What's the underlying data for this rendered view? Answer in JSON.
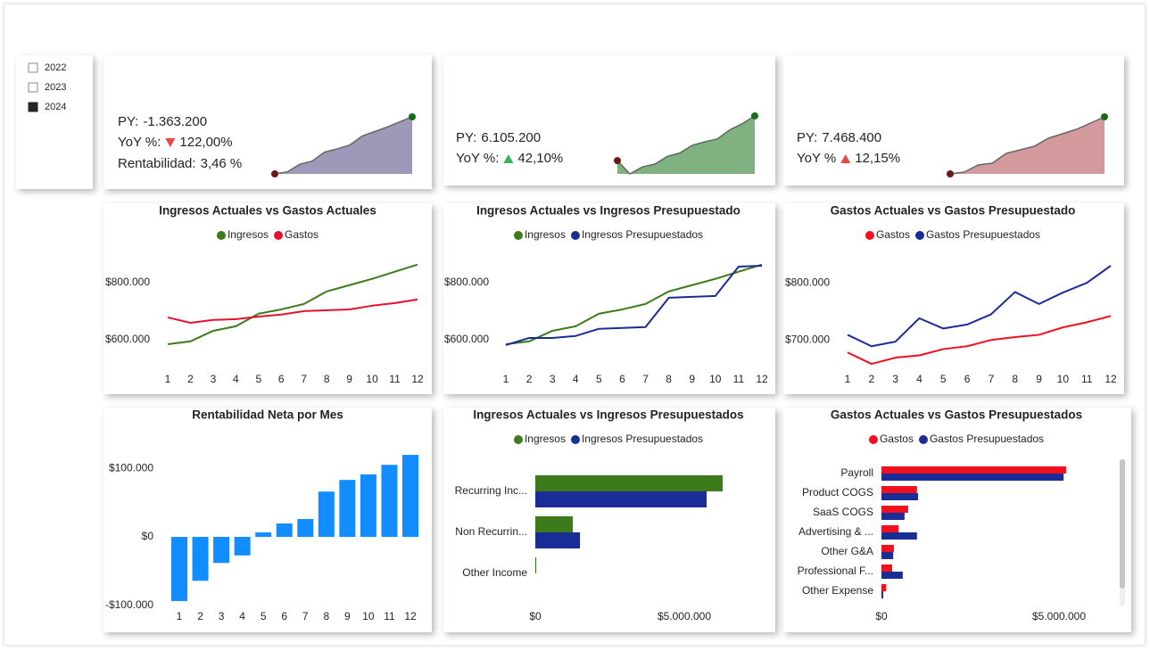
{
  "slicer": {
    "color": "#a08a00",
    "options": [
      {
        "label": "2022",
        "selected": false
      },
      {
        "label": "2023",
        "selected": false
      },
      {
        "label": "2024",
        "selected": true
      }
    ]
  },
  "kpi_cards": [
    {
      "label_color": "#808080",
      "lines": [
        {
          "label": "PY:",
          "value": "-1.363.200",
          "color": "#e8483f"
        },
        {
          "label": "YoY %:",
          "trend": "down",
          "value": "122,00%",
          "color": "#e8483f"
        },
        {
          "label": "Rentabilidad:",
          "value": "3,46 %",
          "color": "#2e8b2e"
        }
      ]
    },
    {
      "label_color": "#808080",
      "lines": [
        {
          "label": "PY:",
          "value": "6.105.200",
          "color": "#35b45a"
        },
        {
          "label": "YoY %:",
          "trend": "up",
          "value": "42,10%",
          "color": "#35b45a"
        }
      ]
    },
    {
      "label_color": "#808080",
      "lines": [
        {
          "label": "PY:",
          "value": "7.468.400",
          "color": "#e8483f"
        },
        {
          "label": "YoY %",
          "trend": "up",
          "value": "12,15%",
          "color": "#e8483f"
        }
      ]
    }
  ],
  "chart_data": [
    {
      "type": "area",
      "color": "#9d99b8",
      "line_color": "#666666",
      "start_color": "#6b1a1a",
      "end_color": "#1a6b1a",
      "values": [
        584000,
        594000,
        631000,
        647000,
        691000,
        706000,
        725000,
        769000,
        791000,
        813000,
        838000,
        863000
      ]
    },
    {
      "type": "area",
      "color": "#80b180",
      "line_color": "#5a6b5a",
      "start_color": "#6b1a1a",
      "end_color": "#1a6b1a",
      "values": [
        678000,
        659000,
        669000,
        673000,
        684000,
        689000,
        700000,
        705000,
        709000,
        722000,
        731000,
        742000
      ]
    },
    {
      "type": "area",
      "color": "#d39a9d",
      "line_color": "#666666",
      "start_color": "#6b1a1a",
      "end_color": "#1a6b1a",
      "values": [
        0,
        2,
        10,
        12,
        23,
        27,
        31,
        40,
        45,
        50,
        57,
        64
      ]
    },
    {
      "type": "line",
      "title": "Ingresos Actuales vs Gastos Actuales",
      "categories": [
        "1",
        "2",
        "3",
        "4",
        "5",
        "6",
        "7",
        "8",
        "9",
        "10",
        "11",
        "12"
      ],
      "ylim": [
        509000,
        884000
      ],
      "yticks": [
        {
          "value": 600000,
          "label": "$600.000"
        },
        {
          "value": 800000,
          "label": "$800.000"
        }
      ],
      "series": [
        {
          "name": "Ingresos",
          "color": "#3d7a1a",
          "values": [
            584000,
            594000,
            631000,
            647000,
            691000,
            706000,
            725000,
            769000,
            791000,
            813000,
            838000,
            863000
          ]
        },
        {
          "name": "Gastos",
          "color": "#e8112d",
          "values": [
            678000,
            659000,
            669000,
            672000,
            681000,
            688000,
            700000,
            703000,
            706000,
            719000,
            728000,
            741000
          ]
        }
      ]
    },
    {
      "type": "line",
      "title": "Ingresos Actuales vs Ingresos Presupuestado",
      "categories": [
        "1",
        "2",
        "3",
        "4",
        "5",
        "6",
        "7",
        "8",
        "9",
        "10",
        "11",
        "12"
      ],
      "ylim": [
        509000,
        884000
      ],
      "yticks": [
        {
          "value": 600000,
          "label": "$600.000"
        },
        {
          "value": 800000,
          "label": "$800.000"
        }
      ],
      "series": [
        {
          "name": "Ingresos",
          "color": "#3d7a1a",
          "values": [
            584000,
            594000,
            631000,
            647000,
            691000,
            706000,
            725000,
            769000,
            791000,
            813000,
            838000,
            863000
          ]
        },
        {
          "name": "Ingresos Presupuestados",
          "color": "#1a2d96",
          "values": [
            581000,
            606000,
            606000,
            613000,
            638000,
            641000,
            644000,
            747000,
            750000,
            753000,
            856000,
            859000
          ]
        }
      ]
    },
    {
      "type": "line",
      "title": "Gastos Actuales vs Gastos Presupuestado",
      "categories": [
        "1",
        "2",
        "3",
        "4",
        "5",
        "6",
        "7",
        "8",
        "9",
        "10",
        "11",
        "12"
      ],
      "ylim": [
        655000,
        842500
      ],
      "yticks": [
        {
          "value": 700000,
          "label": "$700.000"
        },
        {
          "value": 800000,
          "label": "$800.000"
        }
      ],
      "series": [
        {
          "name": "Gastos",
          "color": "#f0101e",
          "values": [
            678000,
            658000,
            669000,
            673000,
            684000,
            689000,
            700000,
            705000,
            709000,
            722000,
            731000,
            742000
          ]
        },
        {
          "name": "Gastos Presupuestados",
          "color": "#1a2d96",
          "values": [
            709000,
            689000,
            697000,
            738000,
            720000,
            727000,
            745000,
            784000,
            763000,
            783000,
            800000,
            830000
          ]
        }
      ]
    },
    {
      "type": "bar",
      "title": "Rentabilidad Neta por Mes",
      "color": "#118dff",
      "categories": [
        "1",
        "2",
        "3",
        "4",
        "5",
        "6",
        "7",
        "8",
        "9",
        "10",
        "11",
        "12"
      ],
      "ylim": [
        -115000,
        130000
      ],
      "yticks": [
        {
          "value": -100000,
          "label": "-$100.000"
        },
        {
          "value": 0,
          "label": "$0"
        },
        {
          "value": 100000,
          "label": "$100.000"
        }
      ],
      "values": [
        -93500,
        -64000,
        -38000,
        -27000,
        6500,
        19500,
        26000,
        66000,
        83000,
        91000,
        105000,
        119500
      ]
    },
    {
      "type": "hbar",
      "title": "Ingresos Actuales vs Ingresos Presupuestados",
      "categories": [
        "Recurring Inc...",
        "Non Recurrin...",
        "Other Income"
      ],
      "xlim": [
        0,
        7800000
      ],
      "xticks": [
        {
          "value": 0,
          "label": "$0"
        },
        {
          "value": 5000000,
          "label": "$5.000.000"
        }
      ],
      "series": [
        {
          "name": "Ingresos",
          "color": "#3d7a1a",
          "values": [
            6290000,
            1260000,
            30000
          ]
        },
        {
          "name": "Ingresos Presupuestados",
          "color": "#1a2d96",
          "values": [
            5750000,
            1500000,
            0
          ]
        }
      ]
    },
    {
      "type": "hbar",
      "title": "Gastos Actuales vs Gastos Presupuestados",
      "categories": [
        "Payroll",
        "Product COGS",
        "SaaS COGS",
        "Advertising & ...",
        "Other G&A",
        "Professional F...",
        "Other Expense"
      ],
      "xlim": [
        0,
        6500000
      ],
      "xticks": [
        {
          "value": 0,
          "label": "$0"
        },
        {
          "value": 5000000,
          "label": "$5.000.000"
        }
      ],
      "series": [
        {
          "name": "Gastos",
          "color": "#f0101e",
          "values": [
            5200000,
            1000000,
            750000,
            480000,
            350000,
            300000,
            130000
          ]
        },
        {
          "name": "Gastos Presupuestados",
          "color": "#1a2d96",
          "values": [
            5130000,
            1030000,
            650000,
            1000000,
            330000,
            600000,
            50000
          ]
        }
      ]
    }
  ]
}
